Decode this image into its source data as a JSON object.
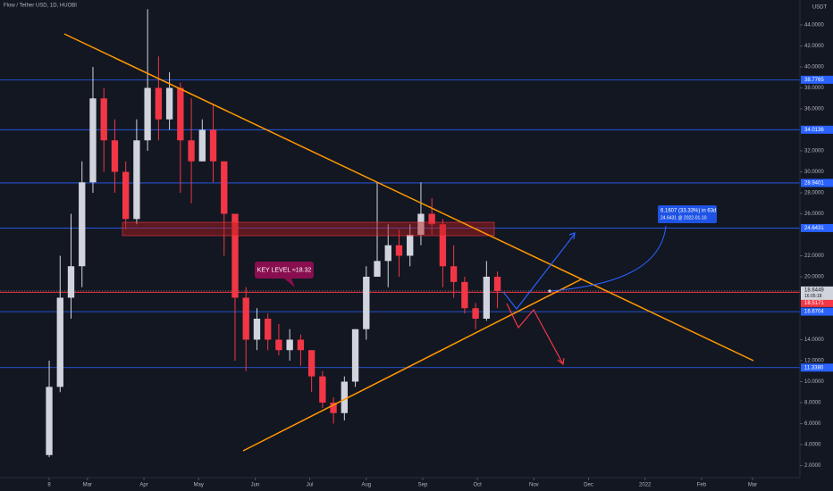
{
  "chart_data": {
    "type": "candlestick",
    "title": "Flow / Tether USD, 1D, HUOBI",
    "currency": "USDT",
    "xlim": [
      "2021-01-12",
      "2022-03-27"
    ],
    "ylim": [
      0.85,
      46.38
    ],
    "grid": false,
    "up_color": "#d1d4dc",
    "down_color": "#f23645",
    "xticks": [
      {
        "value": "2021-02-08",
        "label": "8"
      },
      {
        "value": "2021-03-01",
        "label": "Mar"
      },
      {
        "value": "2021-04-01",
        "label": "Apr"
      },
      {
        "value": "2021-05-01",
        "label": "May"
      },
      {
        "value": "2021-06-01",
        "label": "Jun"
      },
      {
        "value": "2021-07-01",
        "label": "Jul"
      },
      {
        "value": "2021-08-01",
        "label": "Aug"
      },
      {
        "value": "2021-09-01",
        "label": "Sep"
      },
      {
        "value": "2021-10-01",
        "label": "Oct"
      },
      {
        "value": "2021-11-01",
        "label": "Nov"
      },
      {
        "value": "2021-12-01",
        "label": "Dec"
      },
      {
        "value": "2022-01-01",
        "label": "2022"
      },
      {
        "value": "2022-02-01",
        "label": "Feb"
      },
      {
        "value": "2022-03-01",
        "label": "Mar"
      }
    ],
    "yticks": [
      {
        "value": 44,
        "label": "44.0000"
      },
      {
        "value": 42,
        "label": "42.0000"
      },
      {
        "value": 40,
        "label": "40.0000"
      },
      {
        "value": 38,
        "label": "38.0000"
      },
      {
        "value": 36,
        "label": "36.0000"
      },
      {
        "value": 32,
        "label": "32.0000"
      },
      {
        "value": 30,
        "label": "30.0000"
      },
      {
        "value": 28,
        "label": "28.0000"
      },
      {
        "value": 26,
        "label": "26.0000"
      },
      {
        "value": 22,
        "label": "22.0000"
      },
      {
        "value": 20,
        "label": "20.0000"
      },
      {
        "value": 14,
        "label": "14.0000"
      },
      {
        "value": 12,
        "label": "12.0000"
      },
      {
        "value": 10,
        "label": "10.0000"
      },
      {
        "value": 8,
        "label": "8.0000"
      },
      {
        "value": 6,
        "label": "6.0000"
      },
      {
        "value": 4,
        "label": "4.0000"
      },
      {
        "value": 2,
        "label": "2.0000"
      }
    ],
    "candles": {
      "x": [
        "2021-02-08",
        "2021-02-14",
        "2021-02-20",
        "2021-02-26",
        "2021-03-04",
        "2021-03-10",
        "2021-03-16",
        "2021-03-22",
        "2021-03-28",
        "2021-04-03",
        "2021-04-09",
        "2021-04-15",
        "2021-04-21",
        "2021-04-27",
        "2021-05-03",
        "2021-05-09",
        "2021-05-15",
        "2021-05-21",
        "2021-05-27",
        "2021-06-02",
        "2021-06-08",
        "2021-06-14",
        "2021-06-20",
        "2021-06-26",
        "2021-07-02",
        "2021-07-08",
        "2021-07-14",
        "2021-07-20",
        "2021-07-26",
        "2021-08-01",
        "2021-08-07",
        "2021-08-13",
        "2021-08-19",
        "2021-08-25",
        "2021-08-31",
        "2021-09-06",
        "2021-09-12",
        "2021-09-18",
        "2021-09-24",
        "2021-09-30",
        "2021-10-06",
        "2021-10-12"
      ],
      "open": [
        3,
        9.5,
        18,
        21,
        29,
        37,
        33,
        30,
        25.5,
        33,
        38,
        35,
        38,
        33,
        31,
        34,
        31,
        26,
        18,
        14,
        16,
        14,
        13,
        14,
        13,
        10.5,
        8,
        7,
        10,
        15,
        20,
        21.5,
        23,
        22,
        24,
        26,
        25,
        21,
        19.5,
        17,
        16,
        20
      ],
      "high": [
        12,
        22,
        26,
        31,
        40,
        38,
        35,
        31,
        35,
        45.5,
        41,
        39.5,
        38.5,
        37,
        35,
        36.5,
        31,
        26,
        19,
        17,
        16.5,
        15.5,
        15,
        14.5,
        13,
        11,
        8.5,
        10.5,
        15,
        21,
        29,
        25,
        24.5,
        25,
        29,
        27.5,
        25.5,
        23,
        20,
        17.5,
        21.5,
        20.5
      ],
      "low": [
        2.8,
        9,
        16,
        19,
        28,
        30,
        28,
        24.5,
        25,
        32,
        33,
        34,
        28,
        27,
        31,
        29,
        22,
        12,
        11,
        13,
        13,
        12.5,
        12,
        11.5,
        9,
        7.5,
        6,
        6.3,
        9.5,
        14,
        20,
        19,
        20,
        21,
        23,
        24,
        19,
        18,
        16.5,
        15,
        15.8,
        17
      ],
      "close": [
        9.5,
        18,
        21,
        29,
        37,
        33,
        30,
        25.5,
        33,
        38,
        35,
        38,
        33,
        31,
        34,
        31,
        26,
        18,
        14,
        16,
        14,
        13,
        14,
        13,
        10.5,
        8,
        7,
        10,
        15,
        20,
        21.5,
        23,
        22,
        24,
        26,
        25,
        21,
        19.5,
        17,
        16,
        20,
        18.6449
      ]
    },
    "price_lines": {
      "values": [
        38.7765,
        34.0136,
        28.9401,
        24.6431,
        16.6704,
        11.338
      ],
      "value_labels": [
        "38.7765",
        "34.0136",
        "28.9401",
        "24.6431",
        "16.6704",
        "11.3380"
      ],
      "color": "#2962ff"
    },
    "alert_line": {
      "value": 18.5171,
      "color": "#f23645"
    },
    "last_price": {
      "value": 18.6449,
      "countdown": "16:05:18"
    },
    "annotations": {
      "key_level": "KEY LEVEL ≈18.32",
      "target_line1": "6.1607 (33.33%) in 63d",
      "target_line2": "24.6431 @ 2022-01-10"
    }
  }
}
